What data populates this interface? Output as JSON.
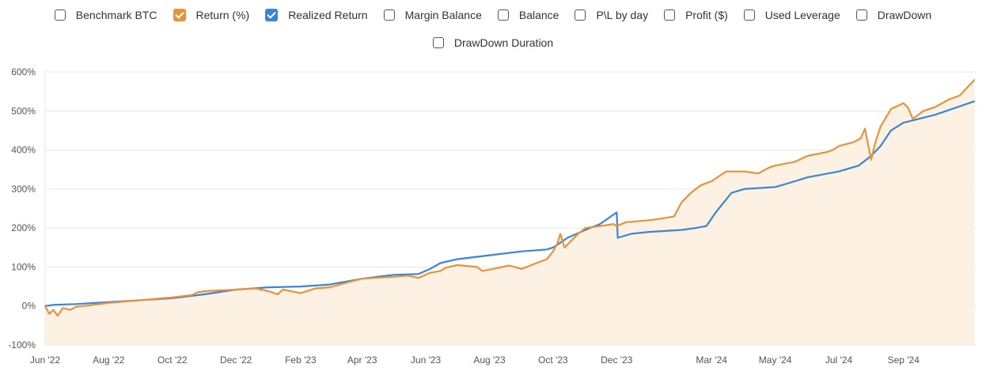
{
  "legend": {
    "items": [
      {
        "label": "Benchmark BTC",
        "checked": false,
        "color": null
      },
      {
        "label": "Return (%)",
        "checked": true,
        "color": "#e8923a"
      },
      {
        "label": "Realized Return",
        "checked": true,
        "color": "#3a85d8"
      },
      {
        "label": "Margin Balance",
        "checked": false,
        "color": null
      },
      {
        "label": "Balance",
        "checked": false,
        "color": null
      },
      {
        "label": "P\\L by day",
        "checked": false,
        "color": null
      },
      {
        "label": "Profit ($)",
        "checked": false,
        "color": null
      },
      {
        "label": "Used Leverage",
        "checked": false,
        "color": null
      },
      {
        "label": "DrawDown",
        "checked": false,
        "color": null
      },
      {
        "label": "DrawDown Duration",
        "checked": false,
        "color": null
      }
    ]
  },
  "chart_data": {
    "type": "line",
    "title": "",
    "xlabel": "",
    "ylabel": "",
    "ylim": [
      -100,
      600
    ],
    "xlim": [
      "2022-06-01",
      "2024-11-10"
    ],
    "grid": true,
    "legend_position": "top",
    "y_tick_labels": [
      "-100%",
      "0%",
      "100%",
      "200%",
      "300%",
      "400%",
      "500%",
      "600%"
    ],
    "y_ticks": [
      -100,
      0,
      100,
      200,
      300,
      400,
      500,
      600
    ],
    "x_tick_labels": [
      "Jun '22",
      "Aug '22",
      "Oct '22",
      "Dec '22",
      "Feb '23",
      "Apr '23",
      "Jun '23",
      "Aug '23",
      "Oct '23",
      "Dec '23",
      "Mar '24",
      "May '24",
      "Jul '24",
      "Sep '24"
    ],
    "x_ticks": [
      "2022-06-01",
      "2022-08-01",
      "2022-10-01",
      "2022-12-01",
      "2023-02-01",
      "2023-04-01",
      "2023-06-01",
      "2023-08-01",
      "2023-10-01",
      "2023-12-01",
      "2024-03-01",
      "2024-05-01",
      "2024-07-01",
      "2024-09-01"
    ],
    "series": [
      {
        "name": "Return (%)",
        "color": "#e8923a",
        "fill": "#fdf1e3",
        "x": [
          "2022-06-01",
          "2022-06-05",
          "2022-06-09",
          "2022-06-13",
          "2022-06-18",
          "2022-06-25",
          "2022-07-01",
          "2022-07-15",
          "2022-08-01",
          "2022-09-01",
          "2022-10-01",
          "2022-10-20",
          "2022-10-25",
          "2022-11-01",
          "2022-12-01",
          "2022-12-20",
          "2023-01-01",
          "2023-01-10",
          "2023-01-15",
          "2023-02-01",
          "2023-02-15",
          "2023-03-01",
          "2023-03-20",
          "2023-04-01",
          "2023-05-01",
          "2023-05-15",
          "2023-05-25",
          "2023-06-05",
          "2023-06-15",
          "2023-06-20",
          "2023-07-01",
          "2023-07-20",
          "2023-07-25",
          "2023-08-10",
          "2023-08-20",
          "2023-09-01",
          "2023-09-15",
          "2023-09-25",
          "2023-10-01",
          "2023-10-05",
          "2023-10-08",
          "2023-10-12",
          "2023-10-25",
          "2023-11-01",
          "2023-11-15",
          "2023-11-28",
          "2023-12-01",
          "2023-12-10",
          "2024-01-01",
          "2024-01-15",
          "2024-01-25",
          "2024-02-01",
          "2024-02-10",
          "2024-02-20",
          "2024-03-01",
          "2024-03-15",
          "2024-04-01",
          "2024-04-15",
          "2024-04-25",
          "2024-05-01",
          "2024-05-20",
          "2024-06-01",
          "2024-06-20",
          "2024-06-25",
          "2024-07-01",
          "2024-07-15",
          "2024-07-22",
          "2024-07-26",
          "2024-08-01",
          "2024-08-05",
          "2024-08-10",
          "2024-08-20",
          "2024-09-01",
          "2024-09-05",
          "2024-09-10",
          "2024-09-20",
          "2024-10-01",
          "2024-10-15",
          "2024-10-25",
          "2024-11-01",
          "2024-11-08"
        ],
        "values": [
          0,
          -20,
          -10,
          -25,
          -5,
          -10,
          -2,
          2,
          8,
          15,
          22,
          28,
          35,
          38,
          42,
          45,
          38,
          30,
          42,
          33,
          45,
          48,
          62,
          70,
          75,
          78,
          72,
          85,
          90,
          98,
          105,
          100,
          90,
          98,
          104,
          95,
          110,
          120,
          140,
          160,
          185,
          150,
          185,
          200,
          205,
          210,
          205,
          215,
          220,
          225,
          230,
          265,
          290,
          310,
          320,
          345,
          345,
          340,
          355,
          360,
          370,
          385,
          395,
          400,
          410,
          420,
          430,
          455,
          375,
          420,
          460,
          505,
          520,
          510,
          480,
          500,
          510,
          530,
          540,
          560,
          580
        ]
      },
      {
        "name": "Realized Return",
        "color": "#3a85d8",
        "x": [
          "2022-06-01",
          "2022-06-10",
          "2022-07-01",
          "2022-08-01",
          "2022-09-01",
          "2022-10-01",
          "2022-11-01",
          "2022-12-01",
          "2023-01-01",
          "2023-02-01",
          "2023-03-01",
          "2023-04-01",
          "2023-05-01",
          "2023-05-25",
          "2023-06-05",
          "2023-06-15",
          "2023-07-01",
          "2023-08-01",
          "2023-09-01",
          "2023-09-25",
          "2023-10-01",
          "2023-10-15",
          "2023-11-01",
          "2023-11-15",
          "2023-12-01",
          "2023-12-02",
          "2023-12-15",
          "2024-01-01",
          "2024-02-01",
          "2024-02-15",
          "2024-02-25",
          "2024-03-05",
          "2024-03-20",
          "2024-04-01",
          "2024-05-01",
          "2024-05-20",
          "2024-06-01",
          "2024-07-01",
          "2024-07-20",
          "2024-08-01",
          "2024-08-10",
          "2024-08-20",
          "2024-09-01",
          "2024-10-01",
          "2024-11-08"
        ],
        "values": [
          0,
          3,
          5,
          10,
          15,
          20,
          30,
          42,
          48,
          50,
          55,
          70,
          80,
          82,
          95,
          110,
          120,
          130,
          140,
          145,
          150,
          175,
          195,
          210,
          240,
          175,
          185,
          190,
          195,
          200,
          205,
          240,
          290,
          300,
          305,
          320,
          330,
          345,
          360,
          385,
          410,
          450,
          470,
          490,
          525
        ]
      }
    ]
  }
}
